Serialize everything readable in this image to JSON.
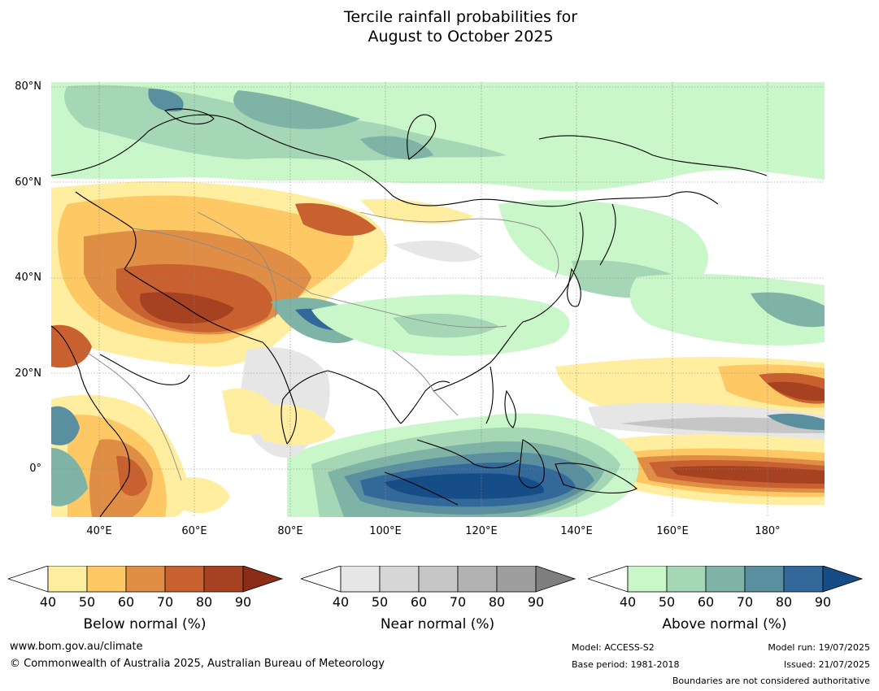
{
  "title": {
    "line1": "Tercile rainfall probabilities for",
    "line2": "August to October 2025"
  },
  "map": {
    "lat_labels": [
      "80°N",
      "60°N",
      "40°N",
      "20°N",
      "0°"
    ],
    "lon_labels": [
      "40°E",
      "60°E",
      "80°E",
      "100°E",
      "120°E",
      "140°E",
      "160°E",
      "180°"
    ],
    "extent": {
      "lon": [
        30,
        192
      ],
      "lat": [
        -10,
        81
      ]
    }
  },
  "legends": [
    {
      "title": "Below normal (%)",
      "ticks": [
        "40",
        "50",
        "60",
        "70",
        "80",
        "90"
      ],
      "colors": [
        "#ffeda0",
        "#fec965",
        "#e08e45",
        "#c8602f",
        "#a64221",
        "#8b2d16"
      ]
    },
    {
      "title": "Near normal (%)",
      "ticks": [
        "40",
        "50",
        "60",
        "70",
        "80",
        "90"
      ],
      "colors": [
        "#e6e6e6",
        "#d6d6d6",
        "#c6c6c6",
        "#b2b2b2",
        "#9e9e9e",
        "#7f7f7f"
      ]
    },
    {
      "title": "Above normal (%)",
      "ticks": [
        "40",
        "50",
        "60",
        "70",
        "80",
        "90"
      ],
      "colors": [
        "#c9f7c9",
        "#a5d6b5",
        "#7fb3a6",
        "#5a8fa0",
        "#33689a",
        "#164d87"
      ]
    }
  ],
  "footer": {
    "url": "www.bom.gov.au/climate",
    "copyright": "© Commonwealth of Australia 2025, Australian Bureau of Meteorology",
    "model": "Model: ACCESS-S2",
    "base_period": "Base period: 1981-2018",
    "model_run": "Model run: 19/07/2025",
    "issued": "Issued: 21/07/2025",
    "disclaimer": "Boundaries are not considered authoritative"
  }
}
